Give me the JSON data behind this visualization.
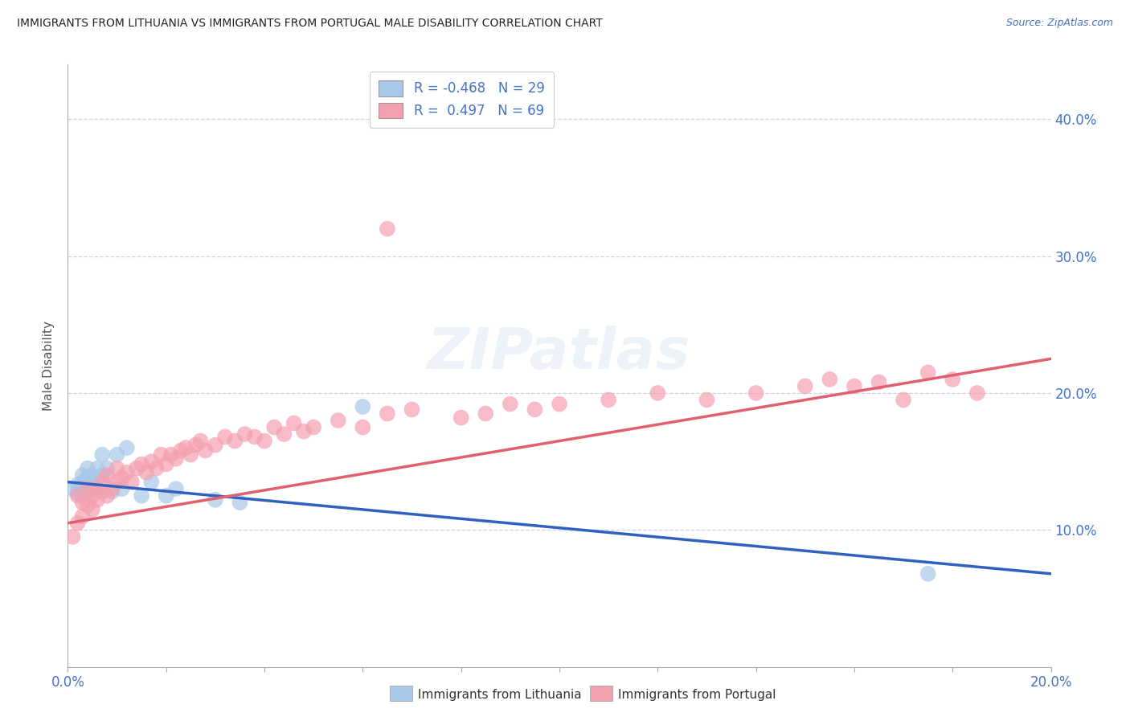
{
  "title": "IMMIGRANTS FROM LITHUANIA VS IMMIGRANTS FROM PORTUGAL MALE DISABILITY CORRELATION CHART",
  "source": "Source: ZipAtlas.com",
  "ylabel": "Male Disability",
  "xlim": [
    0.0,
    0.2
  ],
  "ylim": [
    0.0,
    0.44
  ],
  "color_lithuania": "#a8c8e8",
  "color_portugal": "#f4a0b0",
  "line_color_lithuania": "#3060c0",
  "line_color_portugal": "#e06070",
  "watermark": "ZIPatlas",
  "background_color": "#ffffff",
  "grid_color": "#c8d4e8",
  "lithuania_R": -0.468,
  "portugal_R": 0.497,
  "lithuania_N": 29,
  "portugal_N": 69,
  "lith_x": [
    0.001,
    0.002,
    0.002,
    0.003,
    0.003,
    0.003,
    0.004,
    0.004,
    0.004,
    0.005,
    0.005,
    0.005,
    0.006,
    0.006,
    0.007,
    0.007,
    0.008,
    0.009,
    0.01,
    0.011,
    0.012,
    0.015,
    0.017,
    0.02,
    0.022,
    0.03,
    0.035,
    0.06,
    0.175
  ],
  "lith_y": [
    0.13,
    0.133,
    0.127,
    0.14,
    0.135,
    0.125,
    0.138,
    0.128,
    0.145,
    0.132,
    0.14,
    0.135,
    0.13,
    0.145,
    0.155,
    0.14,
    0.145,
    0.128,
    0.155,
    0.13,
    0.16,
    0.125,
    0.135,
    0.125,
    0.13,
    0.122,
    0.12,
    0.19,
    0.068
  ],
  "port_x": [
    0.001,
    0.002,
    0.002,
    0.003,
    0.003,
    0.004,
    0.004,
    0.005,
    0.005,
    0.006,
    0.006,
    0.007,
    0.007,
    0.008,
    0.008,
    0.009,
    0.01,
    0.01,
    0.011,
    0.012,
    0.013,
    0.014,
    0.015,
    0.016,
    0.017,
    0.018,
    0.019,
    0.02,
    0.021,
    0.022,
    0.023,
    0.024,
    0.025,
    0.026,
    0.027,
    0.028,
    0.03,
    0.032,
    0.034,
    0.036,
    0.038,
    0.04,
    0.042,
    0.044,
    0.046,
    0.048,
    0.05,
    0.055,
    0.06,
    0.065,
    0.07,
    0.08,
    0.085,
    0.09,
    0.095,
    0.1,
    0.11,
    0.12,
    0.13,
    0.14,
    0.15,
    0.155,
    0.16,
    0.165,
    0.17,
    0.175,
    0.18,
    0.185,
    0.065
  ],
  "port_y": [
    0.095,
    0.105,
    0.125,
    0.11,
    0.12,
    0.118,
    0.13,
    0.115,
    0.125,
    0.122,
    0.13,
    0.135,
    0.128,
    0.125,
    0.14,
    0.13,
    0.135,
    0.145,
    0.138,
    0.142,
    0.135,
    0.145,
    0.148,
    0.142,
    0.15,
    0.145,
    0.155,
    0.148,
    0.155,
    0.152,
    0.158,
    0.16,
    0.155,
    0.162,
    0.165,
    0.158,
    0.162,
    0.168,
    0.165,
    0.17,
    0.168,
    0.165,
    0.175,
    0.17,
    0.178,
    0.172,
    0.175,
    0.18,
    0.175,
    0.185,
    0.188,
    0.182,
    0.185,
    0.192,
    0.188,
    0.192,
    0.195,
    0.2,
    0.195,
    0.2,
    0.205,
    0.21,
    0.205,
    0.208,
    0.195,
    0.215,
    0.21,
    0.2,
    0.32
  ]
}
